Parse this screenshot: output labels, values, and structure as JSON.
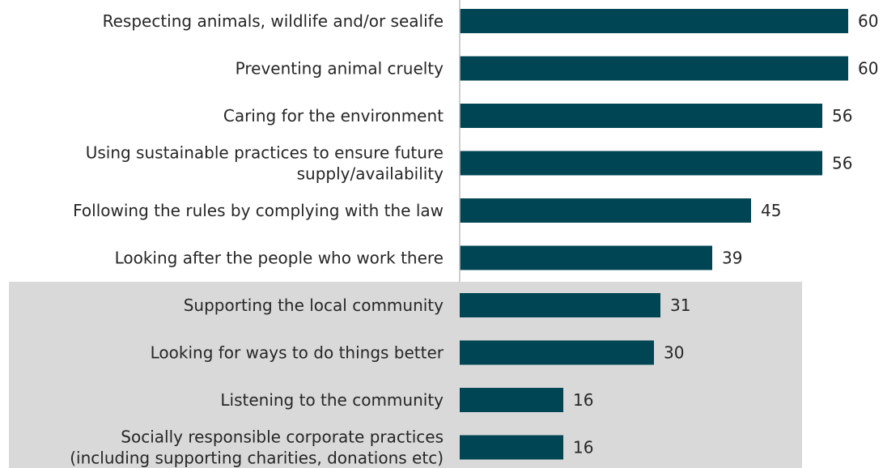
{
  "chart_data": {
    "type": "bar",
    "orientation": "horizontal",
    "categories": [
      [
        "Respecting animals, wildlife and/or sealife"
      ],
      [
        "Preventing animal cruelty"
      ],
      [
        "Caring for the environment"
      ],
      [
        "Using sustainable practices to ensure future",
        "supply/availability"
      ],
      [
        "Following the rules by complying with the law"
      ],
      [
        "Looking after the people who work there"
      ],
      [
        "Supporting the local community"
      ],
      [
        "Looking for ways to do things better"
      ],
      [
        "Listening to the community"
      ],
      [
        "Socially responsible corporate practices",
        "(including supporting charities, donations etc)"
      ]
    ],
    "values": [
      60,
      60,
      56,
      56,
      45,
      39,
      31,
      30,
      16,
      16
    ],
    "value_labels": [
      "60",
      "60",
      "56",
      "56",
      "45",
      "39",
      "31",
      "30",
      "16",
      "16"
    ],
    "xlim": [
      0,
      60
    ],
    "highlighted_group": {
      "from_index": 6,
      "to_index": 9
    },
    "grid": false,
    "legend": "none",
    "colors": {
      "bar": "#004554",
      "highlight_background": "#d9d9d9",
      "axis_line": "#bfbfbf",
      "text": "#262626"
    }
  }
}
